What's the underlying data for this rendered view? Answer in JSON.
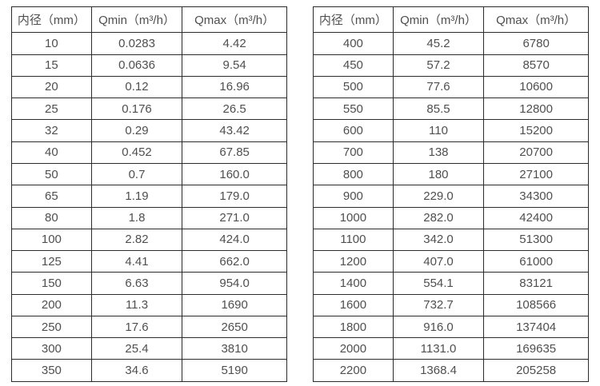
{
  "text_color": "#4f4f4f",
  "border_color": "#2b2b2b",
  "background_color": "#ffffff",
  "tables": [
    {
      "name": "flow-rate-table-small-diameters",
      "headers": [
        "内径（mm）",
        "Qmin（m³/h）",
        "Qmax（m³/h）"
      ],
      "rows": [
        [
          "10",
          "0.0283",
          "4.42"
        ],
        [
          "15",
          "0.0636",
          "9.54"
        ],
        [
          "20",
          "0.12",
          "16.96"
        ],
        [
          "25",
          "0.176",
          "26.5"
        ],
        [
          "32",
          "0.29",
          "43.42"
        ],
        [
          "40",
          "0.452",
          "67.85"
        ],
        [
          "50",
          "0.7",
          "160.0"
        ],
        [
          "65",
          "1.19",
          "179.0"
        ],
        [
          "80",
          "1.8",
          "271.0"
        ],
        [
          "100",
          "2.82",
          "424.0"
        ],
        [
          "125",
          "4.41",
          "662.0"
        ],
        [
          "150",
          "6.63",
          "954.0"
        ],
        [
          "200",
          "11.3",
          "1690"
        ],
        [
          "250",
          "17.6",
          "2650"
        ],
        [
          "300",
          "25.4",
          "3810"
        ],
        [
          "350",
          "34.6",
          "5190"
        ]
      ]
    },
    {
      "name": "flow-rate-table-large-diameters",
      "headers": [
        "内径（mm）",
        "Qmin（m³/h）",
        "Qmax（m³/h）"
      ],
      "rows": [
        [
          "400",
          "45.2",
          "6780"
        ],
        [
          "450",
          "57.2",
          "8570"
        ],
        [
          "500",
          "77.6",
          "10600"
        ],
        [
          "550",
          "85.5",
          "12800"
        ],
        [
          "600",
          "110",
          "15200"
        ],
        [
          "700",
          "138",
          "20700"
        ],
        [
          "800",
          "180",
          "27100"
        ],
        [
          "900",
          "229.0",
          "34300"
        ],
        [
          "1000",
          "282.0",
          "42400"
        ],
        [
          "1100",
          "342.0",
          "51300"
        ],
        [
          "1200",
          "407.0",
          "61000"
        ],
        [
          "1400",
          "554.1",
          "83121"
        ],
        [
          "1600",
          "732.7",
          "108566"
        ],
        [
          "1800",
          "916.0",
          "137404"
        ],
        [
          "2000",
          "1131.0",
          "169635"
        ],
        [
          "2200",
          "1368.4",
          "205258"
        ]
      ]
    }
  ]
}
